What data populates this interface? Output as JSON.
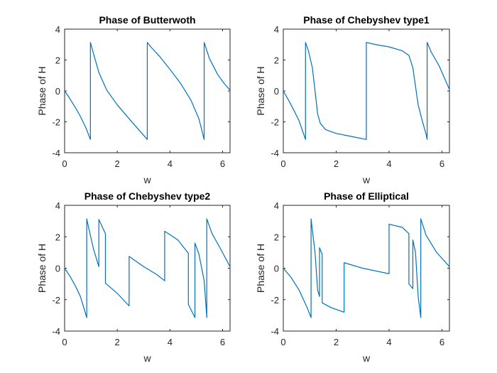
{
  "figure": {
    "background": "#ffffff"
  },
  "chart_data": [
    {
      "type": "line",
      "title": "Phase of Butterwoth",
      "xlabel": "w",
      "ylabel": "Phase of H",
      "xlim": [
        0,
        6.283
      ],
      "ylim": [
        -4,
        4
      ],
      "xticks": [
        0,
        2,
        4,
        6
      ],
      "yticks": [
        -4,
        -2,
        0,
        2,
        4
      ],
      "grid": false,
      "color": "#0072bd",
      "series": [
        {
          "x": [
            0,
            0.2,
            0.4,
            0.6,
            0.8,
            0.98,
            0.98,
            1.1,
            1.3,
            1.6,
            2.0,
            2.5,
            3.14,
            3.14,
            3.3,
            3.6,
            4.0,
            4.4,
            4.8,
            5.1,
            5.3,
            5.3,
            5.5,
            5.8,
            6.05,
            6.283
          ],
          "y": [
            0,
            -0.5,
            -1.05,
            -1.65,
            -2.35,
            -3.14,
            3.14,
            2.4,
            1.2,
            0.05,
            -0.9,
            -1.9,
            -3.14,
            3.14,
            2.8,
            2.25,
            1.4,
            0.5,
            -0.6,
            -1.8,
            -3.14,
            3.14,
            2.1,
            1.1,
            0.5,
            0.05
          ]
        }
      ]
    },
    {
      "type": "line",
      "title": "Phase of Chebyshev type1",
      "xlabel": "w",
      "ylabel": "Phase of H",
      "xlim": [
        0,
        6.283
      ],
      "ylim": [
        -4,
        4
      ],
      "xticks": [
        0,
        2,
        4,
        6
      ],
      "yticks": [
        -4,
        -2,
        0,
        2,
        4
      ],
      "grid": false,
      "color": "#0072bd",
      "series": [
        {
          "x": [
            0,
            0.2,
            0.4,
            0.6,
            0.84,
            0.84,
            0.95,
            1.1,
            1.2,
            1.3,
            1.4,
            1.6,
            2.0,
            2.5,
            3.14,
            3.14,
            3.5,
            4.0,
            4.5,
            4.75,
            4.9,
            5.0,
            5.1,
            5.25,
            5.4,
            5.44,
            5.44,
            5.6,
            5.9,
            6.283
          ],
          "y": [
            0,
            -0.6,
            -1.25,
            -1.95,
            -3.14,
            3.14,
            2.6,
            1.5,
            0.0,
            -1.5,
            -2.1,
            -2.5,
            -2.75,
            -2.92,
            -3.14,
            3.14,
            3.0,
            2.85,
            2.6,
            2.3,
            1.5,
            0.3,
            -0.9,
            -1.9,
            -2.8,
            -3.14,
            3.14,
            2.5,
            1.6,
            0.1
          ]
        }
      ]
    },
    {
      "type": "line",
      "title": "Phase of Chebyshev type2",
      "xlabel": "w",
      "ylabel": "Phase of H",
      "xlim": [
        0,
        6.283
      ],
      "ylim": [
        -4,
        4
      ],
      "xticks": [
        0,
        2,
        4,
        6
      ],
      "yticks": [
        -4,
        -2,
        0,
        2,
        4
      ],
      "grid": false,
      "color": "#0072bd",
      "series": [
        {
          "x": [
            0,
            0.2,
            0.4,
            0.6,
            0.84,
            0.84,
            0.95,
            1.1,
            1.3,
            1.3,
            1.55,
            1.55,
            2.0,
            2.45,
            2.45,
            3.0,
            3.5,
            3.8,
            3.8,
            4.3,
            4.7,
            4.7,
            4.95,
            4.95,
            5.1,
            5.3,
            5.4,
            5.4,
            5.6,
            5.9,
            6.283
          ],
          "y": [
            0,
            -0.5,
            -1.1,
            -1.8,
            -3.14,
            3.14,
            2.3,
            1.2,
            0.1,
            3.1,
            2.2,
            -0.95,
            -1.6,
            -2.4,
            0.75,
            0.1,
            -0.4,
            -0.8,
            2.35,
            1.8,
            0.95,
            -2.3,
            -3.14,
            1.6,
            0.9,
            -0.8,
            -3.14,
            3.14,
            2.2,
            1.3,
            0.1
          ]
        }
      ]
    },
    {
      "type": "line",
      "title": "Phase of Elliptical",
      "xlabel": "w",
      "ylabel": "Phase of H",
      "xlim": [
        0,
        6.283
      ],
      "ylim": [
        -4,
        4
      ],
      "xticks": [
        0,
        2,
        4,
        6
      ],
      "yticks": [
        -4,
        -2,
        0,
        2,
        4
      ],
      "grid": false,
      "color": "#0072bd",
      "series": [
        {
          "x": [
            0,
            0.3,
            0.6,
            0.9,
            1.05,
            1.05,
            1.2,
            1.3,
            1.37,
            1.37,
            1.47,
            1.47,
            1.8,
            2.3,
            2.3,
            3.0,
            4.0,
            4.0,
            4.5,
            4.75,
            4.75,
            4.9,
            4.9,
            5.0,
            5.1,
            5.2,
            5.2,
            5.4,
            5.8,
            6.283
          ],
          "y": [
            0,
            -0.6,
            -1.4,
            -2.5,
            -3.14,
            3.14,
            1.0,
            -1.4,
            -1.8,
            1.3,
            0.9,
            -2.2,
            -2.5,
            -2.8,
            0.35,
            0.0,
            -0.35,
            2.8,
            2.6,
            2.2,
            -1.0,
            -1.3,
            1.8,
            1.0,
            -1.8,
            -3.14,
            3.14,
            2.1,
            1.0,
            0.1
          ]
        }
      ]
    }
  ]
}
